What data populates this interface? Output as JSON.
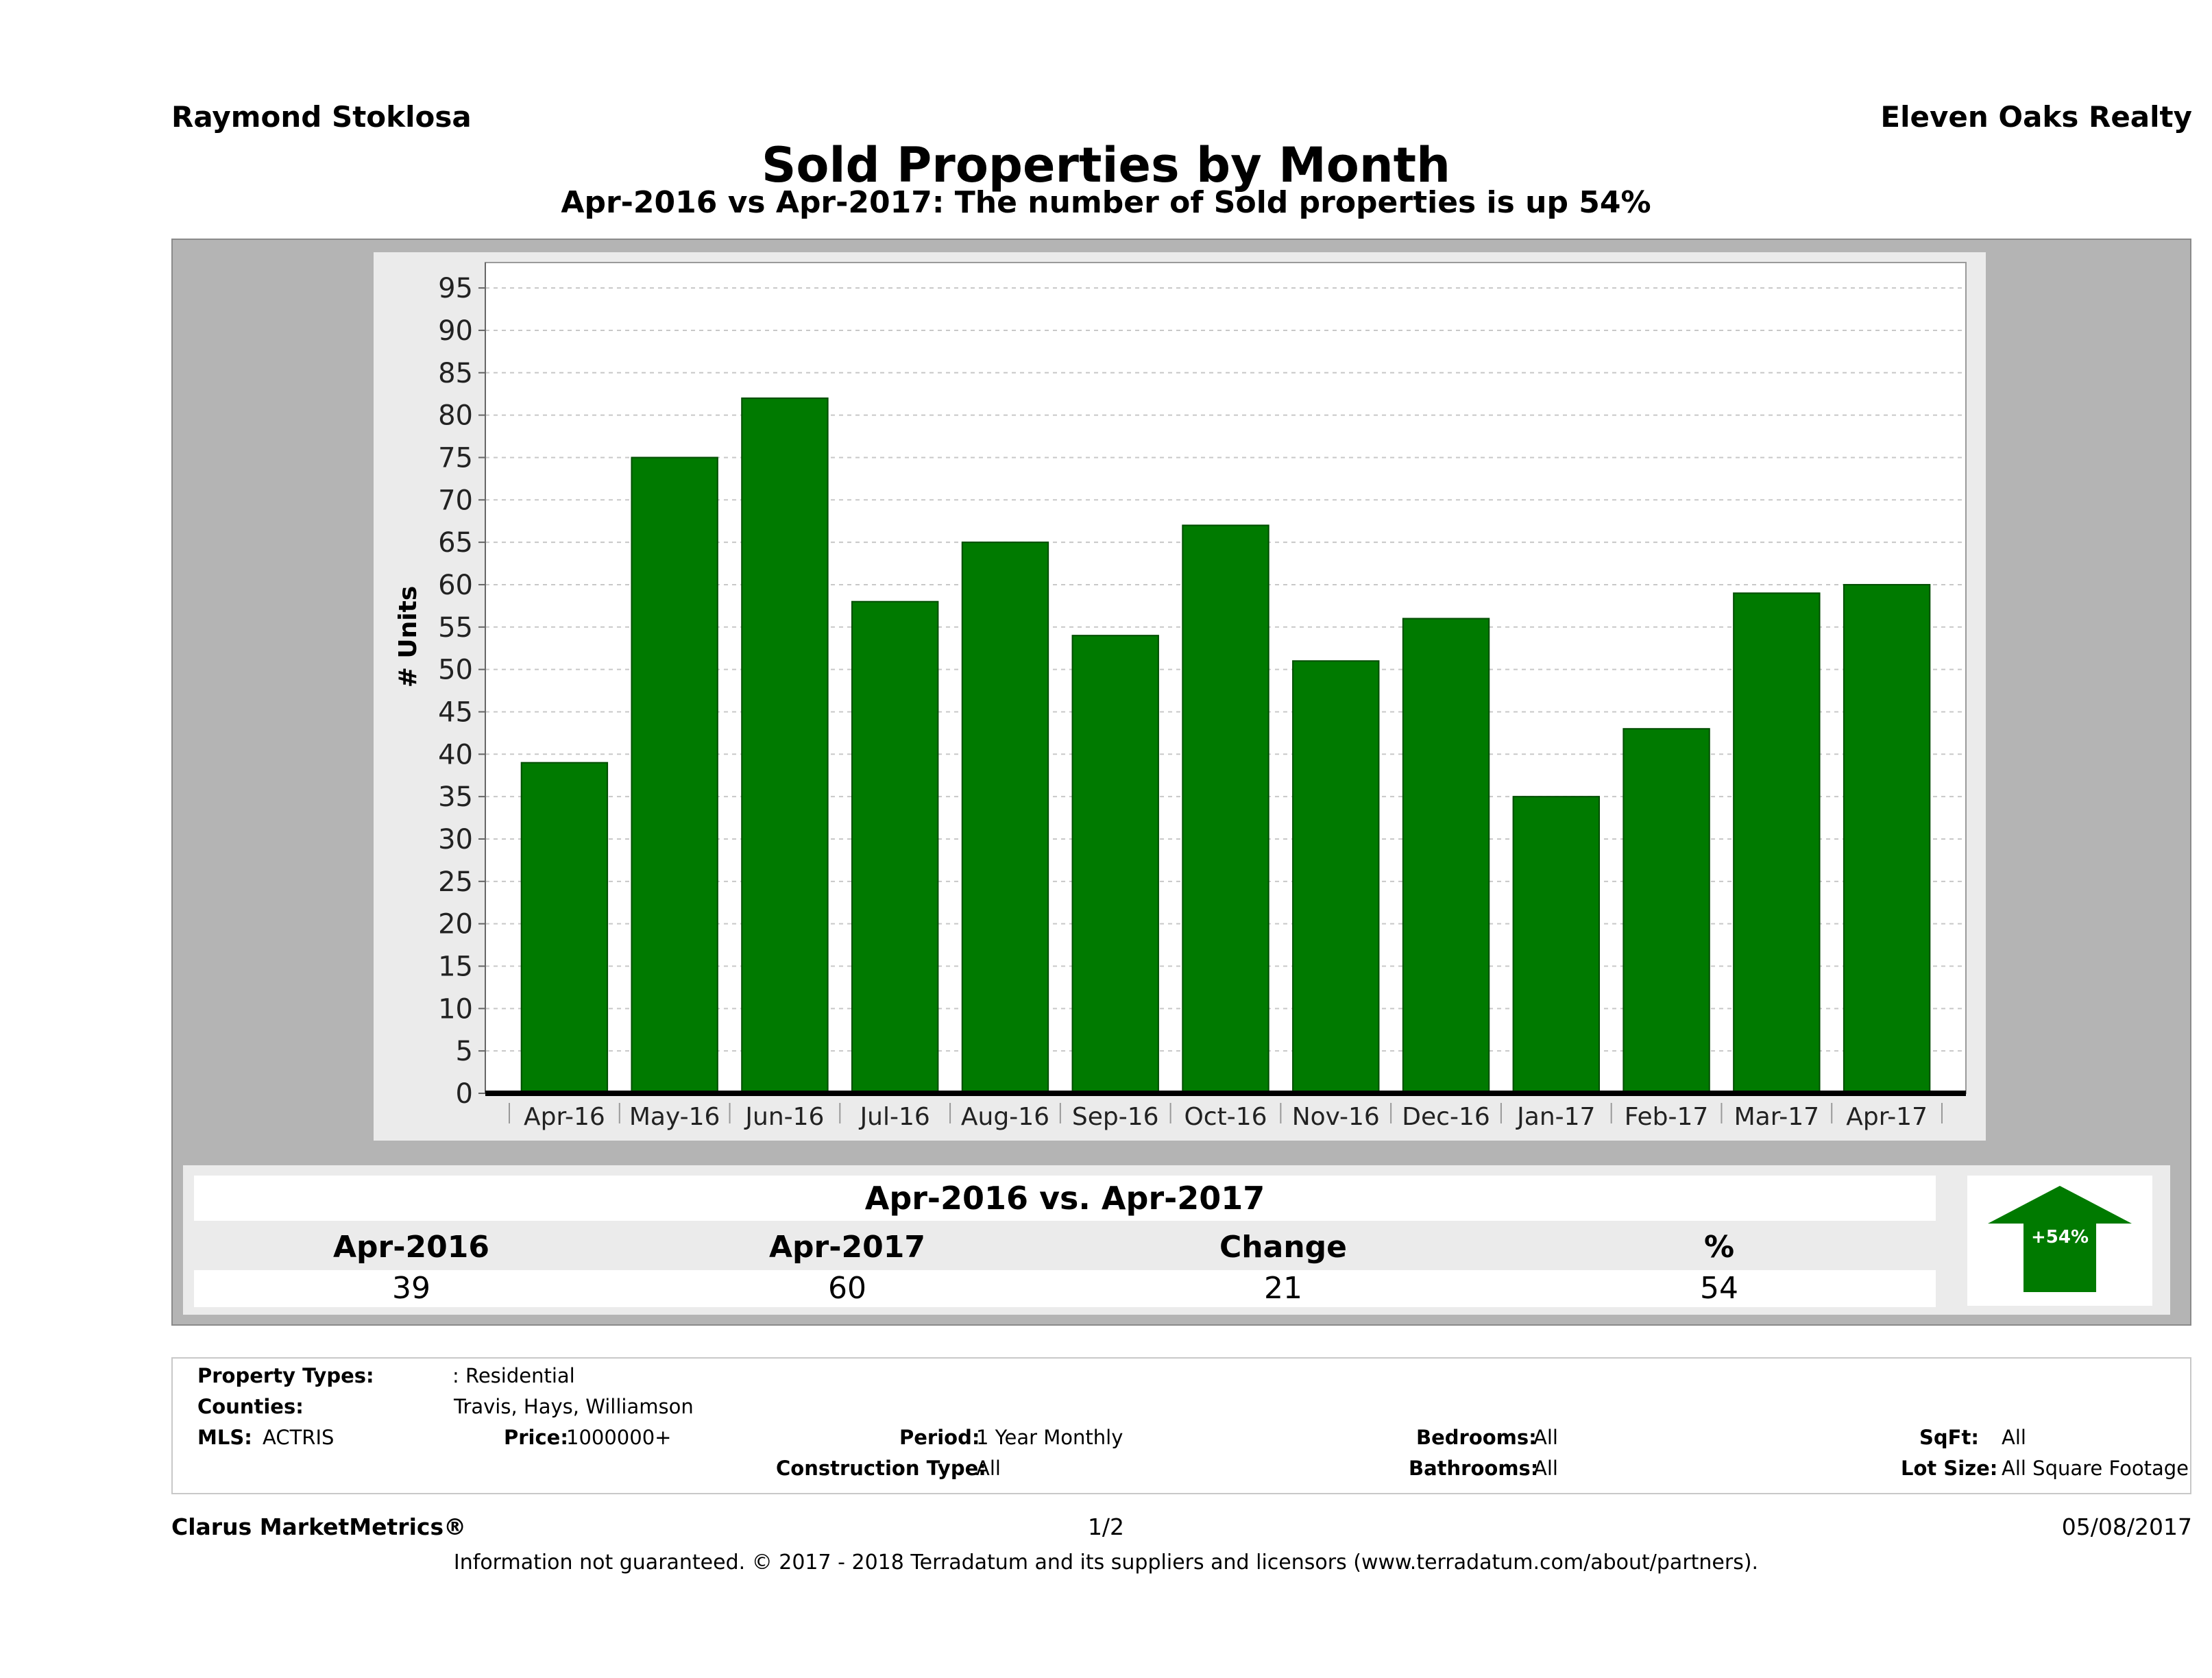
{
  "header": {
    "agent_name": "Raymond Stoklosa",
    "brokerage": "Eleven Oaks Realty",
    "title": "Sold Properties by Month",
    "subtitle": "Apr-2016 vs Apr-2017: The number of Sold  properties is up 54%"
  },
  "chart_data": {
    "type": "bar",
    "categories": [
      "Apr-16",
      "May-16",
      "Jun-16",
      "Jul-16",
      "Aug-16",
      "Sep-16",
      "Oct-16",
      "Nov-16",
      "Dec-16",
      "Jan-17",
      "Feb-17",
      "Mar-17",
      "Apr-17"
    ],
    "values": [
      39,
      75,
      82,
      58,
      65,
      54,
      67,
      51,
      56,
      35,
      43,
      59,
      60
    ],
    "ylabel": "# Units",
    "xlabel": "",
    "ylim": [
      0,
      98
    ],
    "yticks": [
      0,
      5,
      10,
      15,
      20,
      25,
      30,
      35,
      40,
      45,
      50,
      55,
      60,
      65,
      70,
      75,
      80,
      85,
      90,
      95
    ],
    "grid": true,
    "bar_color": "#007a00"
  },
  "comparison": {
    "title": "Apr-2016 vs. Apr-2017",
    "headers": [
      "Apr-2016",
      "Apr-2017",
      "Change",
      "%"
    ],
    "values": [
      "39",
      "60",
      "21",
      "54"
    ],
    "badge": "+54%",
    "badge_icon": "up-arrow-icon",
    "badge_color": "#007a00"
  },
  "filters": {
    "property_types_label": "Property Types:",
    "property_types_value": ": Residential",
    "counties_label": "Counties:",
    "counties_value": "Travis, Hays, Williamson",
    "mls_label": "MLS:",
    "mls_value": "ACTRIS",
    "price_label": "Price:",
    "price_value": "1000000+",
    "period_label": "Period:",
    "period_value": "1 Year Monthly",
    "construction_label": "Construction Type:",
    "construction_value": "All",
    "bedrooms_label": "Bedrooms:",
    "bedrooms_value": "All",
    "bathrooms_label": "Bathrooms:",
    "bathrooms_value": "All",
    "sqft_label": "SqFt:",
    "sqft_value": "All",
    "lot_label": "Lot Size:",
    "lot_value": "All Square Footage"
  },
  "footer": {
    "brand": "Clarus MarketMetrics®",
    "page": "1/2",
    "date": "05/08/2017",
    "disclaimer": "Information not guaranteed. © 2017 - 2018 Terradatum and its suppliers and licensors (www.terradatum.com/about/partners)."
  }
}
